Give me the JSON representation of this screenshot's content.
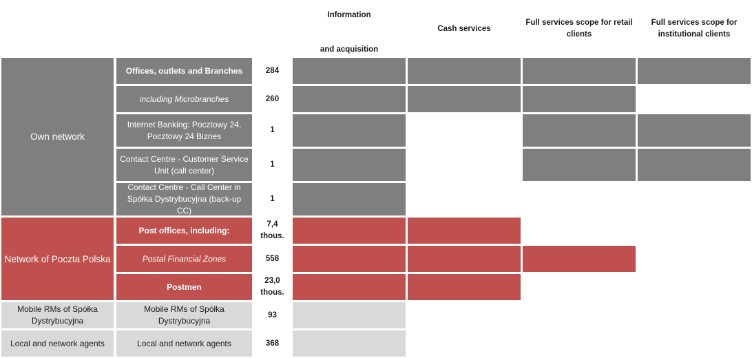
{
  "headers": {
    "info_line1": "Information",
    "info_line2": "and acquisition",
    "cash": "Cash services",
    "retail": "Full services scope for retail clients",
    "institutional": "Full services scope for institutional clients"
  },
  "groups": {
    "own": "Own network",
    "poczta": "Network of Poczta Polska",
    "mobile": "Mobile RMs of Spółka Dystrybucyjna",
    "agents": "Local and network agents"
  },
  "rows": [
    {
      "label": "Offices, outlets and Branches",
      "count": "284",
      "services": [
        "info",
        "cash",
        "retail",
        "institutional"
      ]
    },
    {
      "label": "including Microbranches",
      "count": "260",
      "services": [
        "info",
        "cash",
        "retail"
      ]
    },
    {
      "label": "Internet Banking: Pocztowy 24, Pocztowy 24 Biznes",
      "count": "1",
      "services": [
        "info",
        "retail",
        "institutional"
      ]
    },
    {
      "label": "Contact Centre  - Customer Service Unit (call center)",
      "count": "1",
      "services": [
        "info",
        "retail",
        "institutional"
      ]
    },
    {
      "label": "Contact Centre - Call Center in Spółka Dystrybucyjna (back-up CC)",
      "count": "1",
      "services": [
        "info"
      ]
    },
    {
      "label": "Post offices, including:",
      "count": "7,4 thous.",
      "services": [
        "info",
        "cash"
      ]
    },
    {
      "label": "Postal Financial Zones",
      "count": "558",
      "services": [
        "info",
        "cash",
        "retail"
      ]
    },
    {
      "label": "Postmen",
      "count": "23,0 thous.",
      "services": [
        "info",
        "cash"
      ]
    },
    {
      "label": "Mobile RMs of Spółka Dystrybucyjna",
      "count": "93",
      "services": [
        "info"
      ]
    },
    {
      "label": "Local and network agents",
      "count": "368",
      "services": [
        "info"
      ]
    }
  ],
  "colors": {
    "own": "#7f7f7f",
    "poczta": "#c0504d",
    "other": "#d9d9d9"
  }
}
